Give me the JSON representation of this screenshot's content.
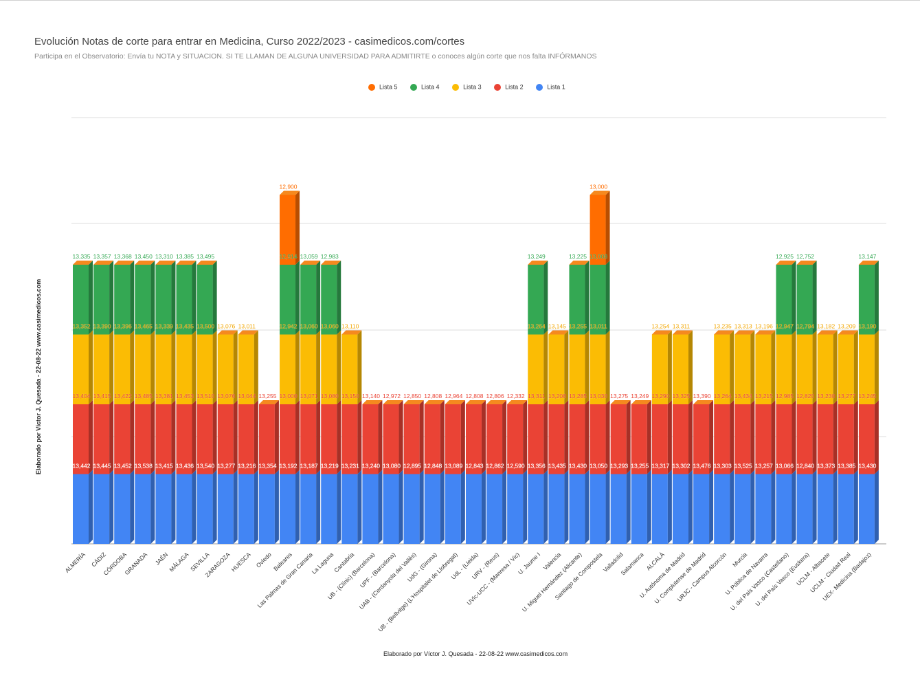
{
  "chart_data": {
    "type": "bar",
    "stacked": true,
    "title": "Evolución Notas de corte para entrar en Medicina, Curso 2022/2023 - casimedicos.com/cortes",
    "subtitle": "Participa en el Observatorio: Envía tu NOTA y SITUACION. SI TE LLAMAN DE ALGUNA UNIVERSIDAD PARA ADMITIRTE o conoces algún corte que nos falta INFÓRMANOS",
    "ylabel": "Elaborado por Víctor J. Quesada - 22-08-22  www.casimedicos.com",
    "xlabel": "Elaborado por Víctor J. Quesada - 22-08-22  www.casimedicos.com",
    "legend_position": "top",
    "categories": [
      "ALMERÍA",
      "CÁDIZ",
      "CÓRDOBA",
      "GRANADA",
      "JAÉN",
      "MÁLAGA",
      "SEVILLA",
      "ZARAGOZA",
      "HUESCA",
      "Oviedo",
      "Baleares",
      "Las Palmas de Gran Canaria",
      "La Laguna",
      "Cantabria",
      "UB - (Clínic) (Barcelona)",
      "UPF - (Barcelona)",
      "UAB - (Cerdanyola del Vallès)",
      "UdG - (Girona)",
      "UB - (Bellvitge) (L'Hospitalet de Llobregat)",
      "UdL - (Lleida)",
      "URV - (Reus)",
      "UVic-UCC - (Manresa / Vic)",
      "U. Jaume I",
      "Valencia",
      "U. Miguel Hernández (Alicante)",
      "Santiago de Compostela",
      "Valladolid",
      "Salamanca",
      "ALCALÁ",
      "U. Autónoma de Madrid",
      "U. Complutense de Madrid",
      "URJC - Campus Alcorcón",
      "Murcia",
      "U. Pública de Navarra",
      "U. del País Vasco (Castellano)",
      "U. del País Vasco (Euskera)",
      "UCLM - Albacete",
      "UCLM - Ciudad Real",
      "UEX- Medicina (Badajoz)"
    ],
    "series": [
      {
        "name": "Lista 1",
        "color": "#4285f4",
        "label_color": "#ffffff",
        "values": [
          "13,442",
          "13,445",
          "13,452",
          "13,538",
          "13,415",
          "13,436",
          "13,540",
          "13,277",
          "13,216",
          "13,354",
          "13,192",
          "13,187",
          "13,219",
          "13,231",
          "13,240",
          "13,080",
          "12,895",
          "12,848",
          "13,089",
          "12,843",
          "12,862",
          "12,590",
          "13,356",
          "13,435",
          "13,430",
          "13,050",
          "13,293",
          "13,255",
          "13,317",
          "13,302",
          "13,476",
          "13,303",
          "13,525",
          "13,257",
          "13,066",
          "12,840",
          "13,373",
          "13,385",
          "13,430"
        ]
      },
      {
        "name": "Lista 2",
        "color": "#ea4335",
        "label_color": "#ea4335",
        "values": [
          "13,404",
          "13,415",
          "13,422",
          "13,485",
          "13,381",
          "13,453",
          "13,510",
          "13,076",
          "13,044",
          "13,255",
          "13,000",
          "13,071",
          "13,080",
          "13,150",
          "13,140",
          "12,972",
          "12,850",
          "12,808",
          "12,964",
          "12,808",
          "12,806",
          "12,332",
          "13,311",
          "13,208",
          "13,285",
          "13,030",
          "13,275",
          "13,249",
          "13,290",
          "13,325",
          "13,390",
          "13,264",
          "13,434",
          "13,215",
          "12,985",
          "12,820",
          "13,230",
          "13,277",
          "13,245"
        ]
      },
      {
        "name": "Lista 3",
        "color": "#fbbc04",
        "label_color": "#f2a600",
        "values": [
          "13,352",
          "13,390",
          "13,396",
          "13,465",
          "13,339",
          "13,435",
          "13,500",
          "13,076",
          "13,011",
          null,
          "12,942",
          "13,060",
          "13,060",
          "13,110",
          null,
          null,
          null,
          null,
          null,
          null,
          null,
          null,
          "13,264",
          "13,145",
          "13,255",
          "13,011",
          null,
          null,
          "13,254",
          "13,311",
          null,
          "13,235",
          "13,313",
          "13,196",
          "12,947",
          "12,794",
          "13,182",
          "13,209",
          "13,190"
        ]
      },
      {
        "name": "Lista 4",
        "color": "#34a853",
        "label_color": "#34a853",
        "values": [
          "13,335",
          "13,357",
          "13,368",
          "13,450",
          "13,310",
          "13,385",
          "13,495",
          null,
          null,
          null,
          "12,914",
          "13,059",
          "12,983",
          null,
          null,
          null,
          null,
          null,
          null,
          null,
          null,
          null,
          "13,249",
          null,
          "13,225",
          "13,008",
          null,
          null,
          null,
          null,
          null,
          null,
          null,
          null,
          "12,925",
          "12,752",
          null,
          null,
          "13,147"
        ]
      },
      {
        "name": "Lista 5",
        "color": "#ff6d01",
        "label_color": "#ff6d01",
        "values": [
          null,
          null,
          null,
          null,
          null,
          null,
          null,
          null,
          null,
          null,
          "12,900",
          null,
          null,
          null,
          null,
          null,
          null,
          null,
          null,
          null,
          null,
          null,
          null,
          null,
          null,
          "13,000",
          null,
          null,
          null,
          null,
          null,
          null,
          null,
          null,
          null,
          null,
          null,
          null,
          null
        ]
      }
    ],
    "grid": true
  }
}
